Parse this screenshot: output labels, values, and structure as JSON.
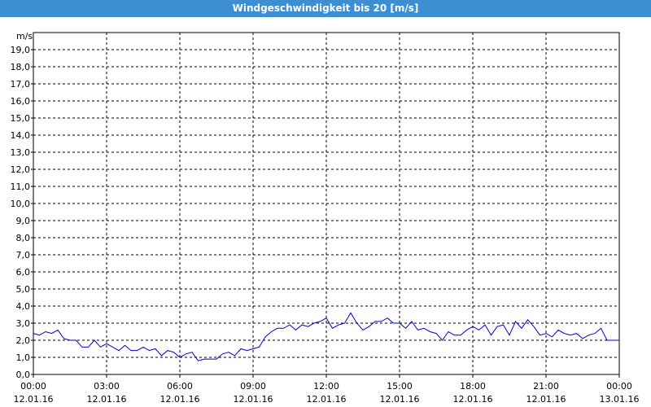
{
  "chart_data": {
    "type": "line",
    "title": "Windgeschwindigkeit bis 20 [m/s]",
    "y_unit": "m/s",
    "x": [
      0,
      0.25,
      0.5,
      0.75,
      1,
      1.25,
      1.5,
      1.75,
      2,
      2.25,
      2.5,
      2.75,
      3,
      3.25,
      3.5,
      3.75,
      4,
      4.25,
      4.5,
      4.75,
      5,
      5.25,
      5.5,
      5.75,
      6,
      6.25,
      6.5,
      6.75,
      7,
      7.25,
      7.5,
      7.75,
      8,
      8.25,
      8.5,
      8.75,
      9,
      9.25,
      9.5,
      9.75,
      10,
      10.25,
      10.5,
      10.75,
      11,
      11.25,
      11.5,
      11.75,
      12,
      12.25,
      12.5,
      12.75,
      13,
      13.25,
      13.5,
      13.75,
      14,
      14.25,
      14.5,
      14.75,
      15,
      15.25,
      15.5,
      15.75,
      16,
      16.25,
      16.5,
      16.75,
      17,
      17.25,
      17.5,
      17.75,
      18,
      18.25,
      18.5,
      18.75,
      19,
      19.25,
      19.5,
      19.75,
      20,
      20.25,
      20.5,
      20.75,
      21,
      21.25,
      21.5,
      21.75,
      22,
      22.25,
      22.5,
      22.75,
      23,
      23.25,
      23.5,
      23.75,
      24
    ],
    "series": [
      {
        "name": "Windgeschwindigkeit",
        "color": "#0000cc",
        "values": [
          2.4,
          2.3,
          2.5,
          2.4,
          2.6,
          2.1,
          2.0,
          2.0,
          1.6,
          1.6,
          2.0,
          1.6,
          1.8,
          1.6,
          1.4,
          1.7,
          1.4,
          1.4,
          1.6,
          1.4,
          1.5,
          1.1,
          1.4,
          1.3,
          1.0,
          1.2,
          1.3,
          0.8,
          0.9,
          0.9,
          0.9,
          1.2,
          1.3,
          1.1,
          1.5,
          1.4,
          1.5,
          1.6,
          2.2,
          2.5,
          2.7,
          2.7,
          2.9,
          2.6,
          2.9,
          2.8,
          3.0,
          3.1,
          3.3,
          2.7,
          2.9,
          3.0,
          3.6,
          3.0,
          2.6,
          2.8,
          3.1,
          3.1,
          3.3,
          3.0,
          3.0,
          2.7,
          3.1,
          2.6,
          2.7,
          2.5,
          2.4,
          2.0,
          2.5,
          2.3,
          2.3,
          2.6,
          2.8,
          2.6,
          2.9,
          2.3,
          2.8,
          2.9,
          2.3,
          3.1,
          2.7,
          3.2,
          2.8,
          2.3,
          2.4,
          2.2,
          2.6,
          2.4,
          2.3,
          2.4,
          2.1,
          2.3,
          2.4,
          2.7,
          2.0,
          2.0,
          2.0
        ]
      }
    ],
    "xlim": [
      0,
      24
    ],
    "xticks": [
      {
        "value": 0,
        "label": "00:00"
      },
      {
        "value": 3,
        "label": "03:00"
      },
      {
        "value": 6,
        "label": "06:00"
      },
      {
        "value": 9,
        "label": "09:00"
      },
      {
        "value": 12,
        "label": "12:00"
      },
      {
        "value": 15,
        "label": "15:00"
      },
      {
        "value": 18,
        "label": "18:00"
      },
      {
        "value": 21,
        "label": "21:00"
      },
      {
        "value": 24,
        "label": "00:00"
      }
    ],
    "xtick_dates": [
      "12.01.16",
      "12.01.16",
      "12.01.16",
      "12.01.16",
      "12.01.16",
      "12.01.16",
      "12.01.16",
      "12.01.16",
      "13.01.16"
    ],
    "ylim": [
      0,
      20
    ],
    "yticks": [
      {
        "value": 0,
        "label": "0,0"
      },
      {
        "value": 1,
        "label": "1,0"
      },
      {
        "value": 2,
        "label": "2,0"
      },
      {
        "value": 3,
        "label": "3,0"
      },
      {
        "value": 4,
        "label": "4,0"
      },
      {
        "value": 5,
        "label": "5,0"
      },
      {
        "value": 6,
        "label": "6,0"
      },
      {
        "value": 7,
        "label": "7,0"
      },
      {
        "value": 8,
        "label": "8,0"
      },
      {
        "value": 9,
        "label": "9,0"
      },
      {
        "value": 10,
        "label": "10,0"
      },
      {
        "value": 11,
        "label": "11,0"
      },
      {
        "value": 12,
        "label": "12,0"
      },
      {
        "value": 13,
        "label": "13,0"
      },
      {
        "value": 14,
        "label": "14,0"
      },
      {
        "value": 15,
        "label": "15,0"
      },
      {
        "value": 16,
        "label": "16,0"
      },
      {
        "value": 17,
        "label": "17,0"
      },
      {
        "value": 18,
        "label": "18,0"
      },
      {
        "value": 19,
        "label": "19,0"
      }
    ],
    "grid": true
  }
}
